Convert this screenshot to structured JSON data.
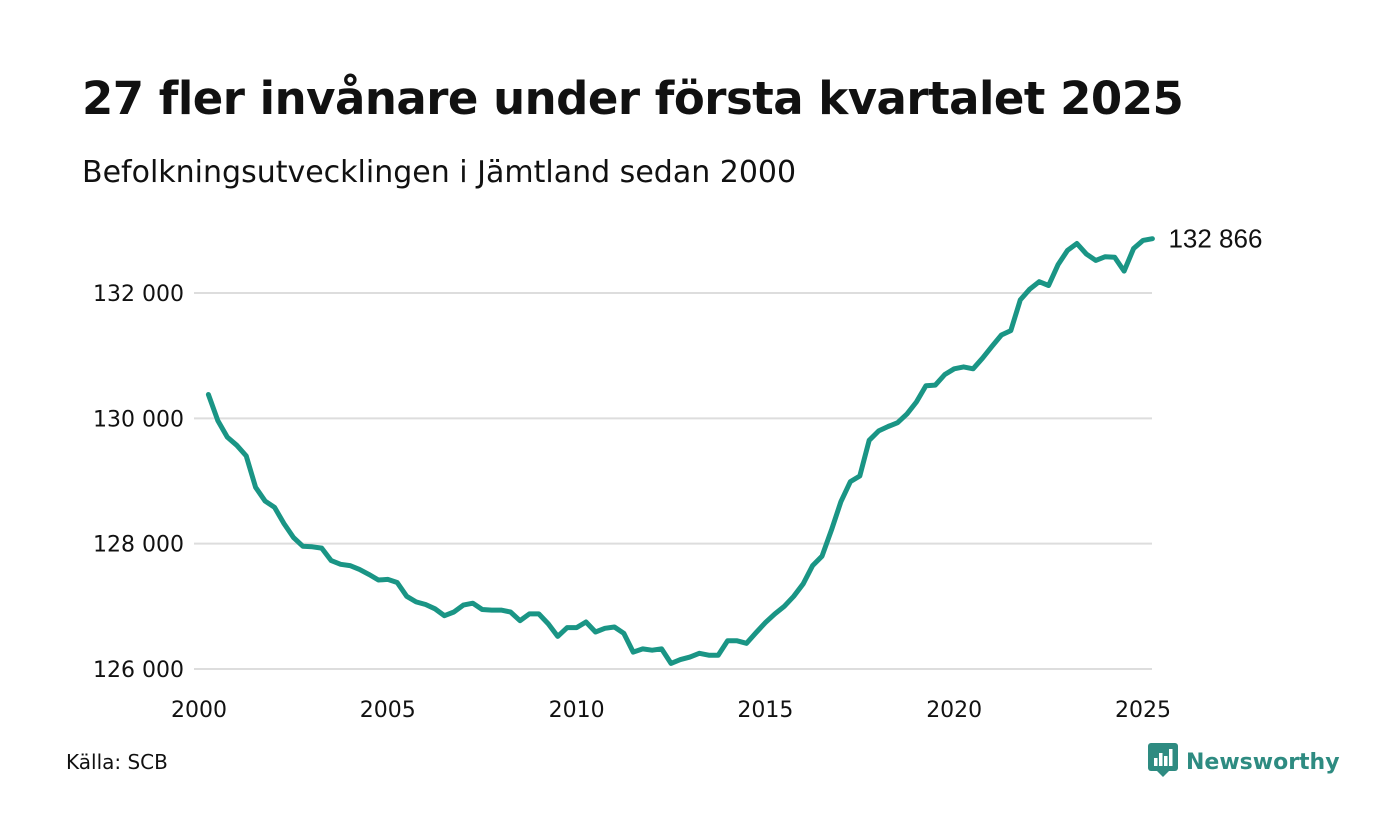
{
  "title": "27 fler invånare under första kvartalet 2025",
  "subtitle": "Befolkningsutvecklingen i Jämtland sedan 2000",
  "source": "Källa: SCB",
  "brand": {
    "name": "Newsworthy",
    "icon": "bar-chart-speech-bubble-icon",
    "color": "#2e8b81"
  },
  "colors": {
    "line": "#1a9585",
    "grid": "#dddddd",
    "text": "#111111"
  },
  "chart_data": {
    "type": "line",
    "title": "27 fler invånare under första kvartalet 2025",
    "subtitle": "Befolkningsutvecklingen i Jämtland sedan 2000",
    "xlabel": "",
    "ylabel": "",
    "xlim": [
      2000,
      2025.25
    ],
    "ylim": [
      126000,
      132866
    ],
    "x_ticks": [
      2000,
      2005,
      2010,
      2015,
      2020,
      2025
    ],
    "x_tick_labels": [
      "2000",
      "2005",
      "2010",
      "2015",
      "2020",
      "2025"
    ],
    "y_ticks": [
      126000,
      128000,
      130000,
      132000
    ],
    "y_tick_labels": [
      "126 000",
      "128 000",
      "130 000",
      "132 000"
    ],
    "grid": "horizontal",
    "legend": "none",
    "end_label": "132 866",
    "series": [
      {
        "x": [
          2000.25,
          2000.5,
          2000.75,
          2001.0,
          2001.25,
          2001.5,
          2001.75,
          2002.0,
          2002.25,
          2002.5,
          2002.75,
          2003.0,
          2003.25,
          2003.5,
          2003.75,
          2004.0,
          2004.25,
          2004.5,
          2004.75,
          2005.0,
          2005.25,
          2005.5,
          2005.75,
          2006.0,
          2006.25,
          2006.5,
          2006.75,
          2007.0,
          2007.25,
          2007.5,
          2007.75,
          2008.0,
          2008.25,
          2008.5,
          2008.75,
          2009.0,
          2009.25,
          2009.5,
          2009.75,
          2010.0,
          2010.25,
          2010.5,
          2010.75,
          2011.0,
          2011.25,
          2011.5,
          2011.75,
          2012.0,
          2012.25,
          2012.5,
          2012.75,
          2013.0,
          2013.25,
          2013.5,
          2013.75,
          2014.0,
          2014.25,
          2014.5,
          2014.75,
          2015.0,
          2015.25,
          2015.5,
          2015.75,
          2016.0,
          2016.25,
          2016.5,
          2016.75,
          2017.0,
          2017.25,
          2017.5,
          2017.75,
          2018.0,
          2018.25,
          2018.5,
          2018.75,
          2019.0,
          2019.25,
          2019.5,
          2019.75,
          2020.0,
          2020.25,
          2020.5,
          2020.75,
          2021.0,
          2021.25,
          2021.5,
          2021.75,
          2022.0,
          2022.25,
          2022.5,
          2022.75,
          2023.0,
          2023.25,
          2023.5,
          2023.75,
          2024.0,
          2024.25,
          2024.5,
          2024.75,
          2025.0,
          2025.25
        ],
        "values": [
          130380,
          129960,
          129700,
          129570,
          129400,
          128900,
          128680,
          128580,
          128320,
          128100,
          127960,
          127950,
          127930,
          127730,
          127670,
          127650,
          127590,
          127510,
          127420,
          127430,
          127380,
          127160,
          127070,
          127030,
          126960,
          126850,
          126910,
          127020,
          127050,
          126950,
          126940,
          126940,
          126910,
          126770,
          126880,
          126880,
          126720,
          126520,
          126660,
          126660,
          126750,
          126590,
          126650,
          126670,
          126570,
          126270,
          126320,
          126300,
          126320,
          126090,
          126150,
          126190,
          126250,
          126220,
          126220,
          126450,
          126450,
          126410,
          126580,
          126740,
          126880,
          127000,
          127160,
          127360,
          127650,
          127800,
          128220,
          128670,
          128990,
          129080,
          129650,
          129800,
          129870,
          129930,
          130070,
          130260,
          130520,
          130530,
          130700,
          130790,
          130820,
          130790,
          130960,
          131150,
          131330,
          131400,
          131890,
          132060,
          132180,
          132120,
          132450,
          132680,
          132790,
          132620,
          132520,
          132580,
          132570,
          132350,
          132710,
          132840,
          132866
        ]
      }
    ]
  }
}
